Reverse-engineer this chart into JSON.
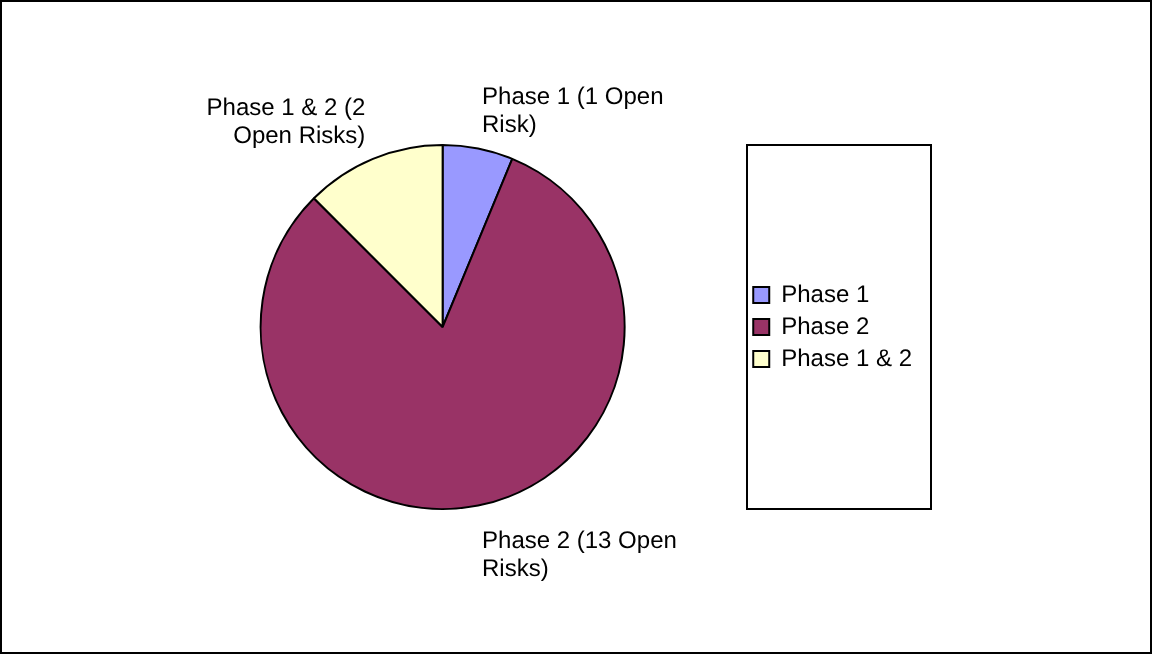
{
  "chart_data": {
    "type": "pie",
    "categories": [
      "Phase 1",
      "Phase 2",
      "Phase 1 & 2"
    ],
    "values": [
      1,
      13,
      2
    ],
    "colors": [
      "#9999ff",
      "#993366",
      "#ffffcc"
    ],
    "value_labels": [
      "Phase 1 (1 Open Risk)",
      "Phase 2 (13 Open Risks)",
      "Phase 1 & 2 (2 Open Risks)"
    ],
    "legend": "right"
  }
}
